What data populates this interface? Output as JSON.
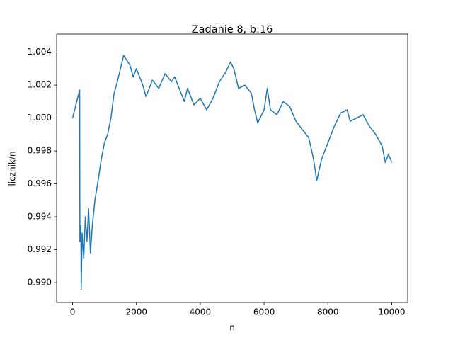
{
  "chart_data": {
    "type": "line",
    "title": "Zadanie 8, b:16",
    "x_label": "n",
    "y_label": "licznik/n",
    "x": [
      0,
      220,
      230,
      260,
      270,
      300,
      350,
      400,
      450,
      500,
      560,
      620,
      700,
      800,
      900,
      1000,
      1100,
      1200,
      1300,
      1400,
      1500,
      1600,
      1700,
      1800,
      1900,
      2000,
      2200,
      2300,
      2500,
      2700,
      2900,
      3100,
      3200,
      3400,
      3500,
      3600,
      3800,
      4000,
      4200,
      4400,
      4600,
      4800,
      4950,
      5050,
      5200,
      5400,
      5600,
      5700,
      5800,
      6000,
      6100,
      6200,
      6400,
      6600,
      6800,
      7000,
      7200,
      7400,
      7550,
      7650,
      7800,
      8000,
      8200,
      8400,
      8600,
      8700,
      8900,
      9100,
      9300,
      9500,
      9700,
      9800,
      9900,
      10000
    ],
    "series": [
      {
        "name": "licznik/n",
        "color": "#1f77b4",
        "values": [
          1.0,
          1.0017,
          0.9925,
          0.9935,
          0.9896,
          0.993,
          0.9915,
          0.994,
          0.9925,
          0.9945,
          0.9918,
          0.9935,
          0.995,
          0.9962,
          0.9975,
          0.9985,
          0.999,
          1.0,
          1.0015,
          1.0022,
          1.003,
          1.0038,
          1.0035,
          1.0032,
          1.0025,
          1.003,
          1.002,
          1.0013,
          1.0023,
          1.0018,
          1.0027,
          1.0022,
          1.0025,
          1.0015,
          1.001,
          1.0018,
          1.0008,
          1.0012,
          1.0005,
          1.0012,
          1.0022,
          1.0028,
          1.0034,
          1.003,
          1.0018,
          1.002,
          1.0015,
          1.0005,
          0.9997,
          1.0005,
          1.0018,
          1.0005,
          1.0002,
          1.001,
          1.0007,
          0.9998,
          0.9993,
          0.9988,
          0.9975,
          0.9962,
          0.9975,
          0.9985,
          0.9995,
          1.0003,
          1.0005,
          0.9998,
          1.0,
          1.0002,
          0.9995,
          0.999,
          0.9983,
          0.9973,
          0.9978,
          0.9973
        ]
      }
    ],
    "xlim": [
      -500,
      10500
    ],
    "ylim": [
      0.9888,
      1.0051
    ],
    "xticks": [
      0,
      2000,
      4000,
      6000,
      8000,
      10000
    ],
    "yticks": [
      {
        "value": 0.99,
        "label": "0.990"
      },
      0.992,
      0.994,
      0.996,
      0.998,
      {
        "value": 1.0,
        "label": "1.000"
      },
      1.002,
      1.004
    ]
  }
}
